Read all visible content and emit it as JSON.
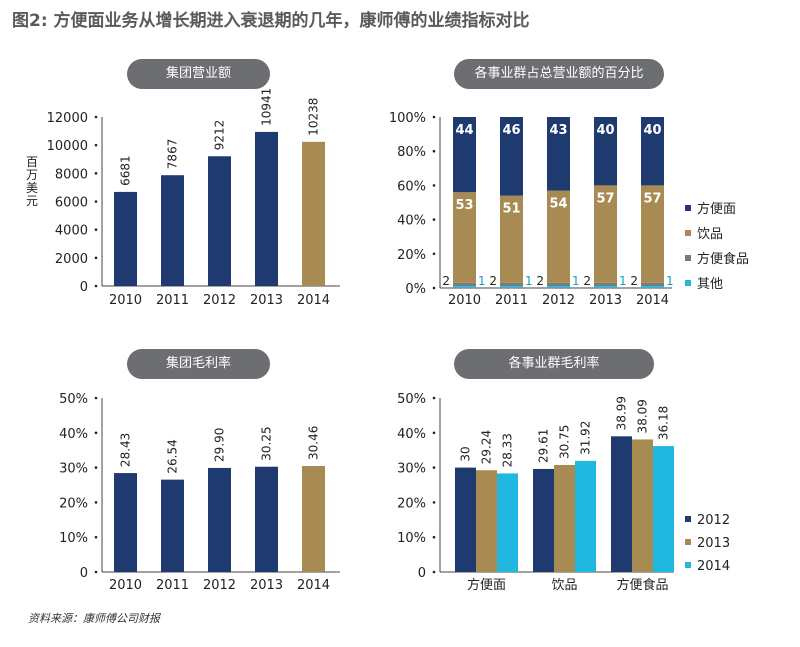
{
  "page": {
    "title": "图2: 方便面业务从增长期进入衰退期的几年，康师傅的业绩指标对比",
    "source": "资料来源：康师傅公司财报"
  },
  "colors": {
    "navy": "#1f3a6e",
    "gold": "#a78b53",
    "gray": "#7a7b7e",
    "cyan": "#20b8e0",
    "pill": "#6d6e71"
  },
  "chart_data": [
    {
      "type": "bar",
      "title": "集团营业额",
      "ylabel": "百万美元",
      "categories": [
        "2010",
        "2011",
        "2012",
        "2013",
        "2014"
      ],
      "values": [
        6681,
        7867,
        9212,
        10941,
        10238
      ],
      "labels": [
        "6681",
        "7867",
        "9212",
        "10941",
        "10238"
      ],
      "ylim": [
        0,
        12000
      ],
      "yticks": [
        "0",
        "2000",
        "4000",
        "6000",
        "8000",
        "10000",
        "12000"
      ],
      "highlight_last": true
    },
    {
      "type": "bar",
      "title": "各事业群占总营业额的百分比",
      "stacked": true,
      "categories": [
        "2010",
        "2011",
        "2012",
        "2013",
        "2014"
      ],
      "ylim": [
        0,
        100
      ],
      "yticks": [
        "0%",
        "20%",
        "40%",
        "60%",
        "80%",
        "100%"
      ],
      "series": [
        {
          "name": "其他",
          "values": [
            1,
            1,
            1,
            1,
            1
          ],
          "labels": [
            "1",
            "1",
            "1",
            "1",
            "1"
          ]
        },
        {
          "name": "方便食品",
          "values": [
            2,
            2,
            2,
            2,
            2
          ],
          "labels": [
            "2",
            "2",
            "2",
            "2",
            "2"
          ]
        },
        {
          "name": "饮品",
          "values": [
            53,
            51,
            54,
            57,
            57
          ],
          "labels": [
            "53",
            "51",
            "54",
            "57",
            "57"
          ]
        },
        {
          "name": "方便面",
          "values": [
            44,
            46,
            43,
            40,
            40
          ],
          "labels": [
            "44",
            "46",
            "43",
            "40",
            "40"
          ]
        }
      ],
      "legend": [
        "方便面",
        "饮品",
        "方便食品",
        "其他"
      ]
    },
    {
      "type": "bar",
      "title": "集团毛利率",
      "categories": [
        "2010",
        "2011",
        "2012",
        "2013",
        "2014"
      ],
      "values": [
        28.43,
        26.54,
        29.9,
        30.25,
        30.46
      ],
      "labels": [
        "28.43",
        "26.54",
        "29.90",
        "30.25",
        "30.46"
      ],
      "ylim": [
        0,
        50
      ],
      "yticks": [
        "0",
        "10%",
        "20%",
        "30%",
        "40%",
        "50%"
      ],
      "highlight_last": true
    },
    {
      "type": "bar",
      "title": "各事业群毛利率",
      "grouped": true,
      "categories": [
        "方便面",
        "饮品",
        "方便食品"
      ],
      "ylim": [
        0,
        50
      ],
      "yticks": [
        "0",
        "10%",
        "20%",
        "30%",
        "40%",
        "50%"
      ],
      "series": [
        {
          "name": "2012",
          "values": [
            30,
            29.61,
            38.99
          ],
          "labels": [
            "30",
            "29.61",
            "38.99"
          ]
        },
        {
          "name": "2013",
          "values": [
            29.24,
            30.75,
            38.09
          ],
          "labels": [
            "29.24",
            "30.75",
            "38.09"
          ]
        },
        {
          "name": "2014",
          "values": [
            28.33,
            31.92,
            36.18
          ],
          "labels": [
            "28.33",
            "31.92",
            "36.18"
          ]
        }
      ],
      "legend": [
        "2012",
        "2013",
        "2014"
      ]
    }
  ]
}
